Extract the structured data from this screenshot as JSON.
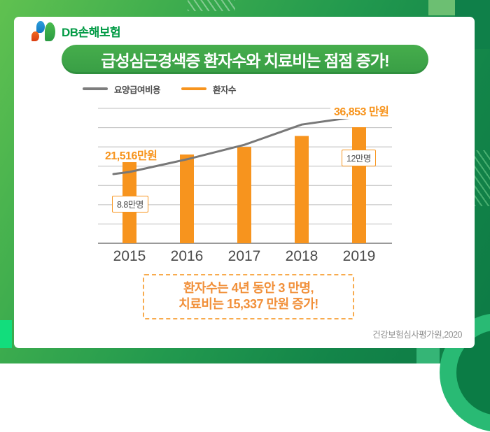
{
  "brand": {
    "logo_text": "DB손해보험"
  },
  "title": {
    "text": "급성심근경색증 환자수와 치료비는 점점 증가!"
  },
  "legend": {
    "items": [
      {
        "label": "요양급여비용",
        "color": "#7d7d7d"
      },
      {
        "label": "환자수",
        "color": "#f7941d"
      }
    ]
  },
  "chart_data": {
    "type": "combo",
    "categories": [
      "2015",
      "2016",
      "2017",
      "2018",
      "2019"
    ],
    "series": [
      {
        "name": "요양급여비용",
        "type": "line",
        "unit": "만원",
        "color": "#787878",
        "values": [
          21516,
          25000,
          29000,
          34600,
          36853
        ],
        "note": "only 2015 (21,516) and 2019 (36,853) are labeled; middle values estimated from line position"
      },
      {
        "name": "환자수",
        "type": "bar",
        "unit": "만명",
        "color": "#f7941e",
        "values": [
          8.8,
          9.5,
          10.2,
          11.2,
          12
        ],
        "note": "only 2015 (8.8) and 2019 (12) are labeled; middle values estimated from bar heights"
      }
    ],
    "annotations": {
      "line_start_label": "21,516만원",
      "line_end_label": "36,853 만원",
      "bar_start_label": "8.8만명",
      "bar_end_label": "12만명"
    },
    "grid": "horizontal",
    "legend_position": "top-left"
  },
  "callout": {
    "line1": "환자수는 4년 동안 3 만명,",
    "line2": "치료비는  15,337 만원 증가!"
  },
  "source": {
    "text": "건강보험심사평가원,2020"
  },
  "colors": {
    "accent_orange": "#f7941e",
    "banner_green": "#3da348",
    "logo_green": "#009a44",
    "line_gray": "#787878"
  }
}
